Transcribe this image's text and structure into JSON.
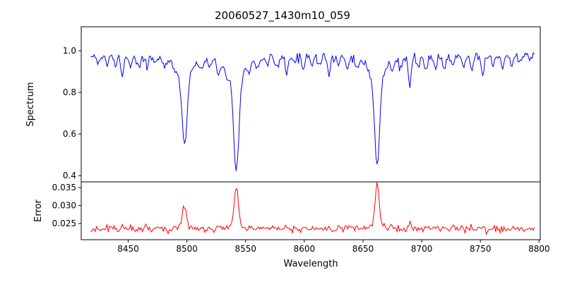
{
  "chart_data": {
    "type": "line",
    "title": "20060527_1430m10_059",
    "xlabel": "Wavelength",
    "xlim": [
      8410,
      8801
    ],
    "xticks": [
      8450,
      8500,
      8550,
      8600,
      8650,
      8700,
      8750,
      8800
    ],
    "wavelength_start": 8418,
    "wavelength_end": 8796,
    "wavelength_step": 1,
    "grid": false,
    "legend": "none",
    "panels": [
      {
        "name": "spectrum",
        "ylabel": "Spectrum",
        "yticks": [
          "0.4",
          "0.6",
          "0.8",
          "1.0"
        ],
        "ytick_values": [
          0.4,
          0.6,
          0.8,
          1.0
        ],
        "ylim": [
          0.37,
          1.115
        ],
        "color": "#0000ee",
        "continuum": 0.975,
        "noise_std": 0.011
      },
      {
        "name": "error",
        "ylabel": "Error",
        "yticks": [
          "0.025",
          "0.030",
          "0.035"
        ],
        "ytick_values": [
          0.025,
          0.03,
          0.035
        ],
        "ylim": [
          0.0205,
          0.0366
        ],
        "color": "#ff0000",
        "base": 0.0233,
        "noise_std": 0.00045
      }
    ],
    "absorption_lines": [
      {
        "center": 8498,
        "core_flux": 0.545,
        "error_peak": 0.0296
      },
      {
        "center": 8542,
        "core_flux": 0.42,
        "error_peak": 0.0352
      },
      {
        "center": 8662,
        "core_flux": 0.445,
        "error_peak": 0.0362
      }
    ],
    "minor_lines": [
      {
        "center": 8424,
        "depth": 0.04
      },
      {
        "center": 8432,
        "depth": 0.05
      },
      {
        "center": 8439,
        "depth": 0.04
      },
      {
        "center": 8445,
        "depth": 0.085
      },
      {
        "center": 8452,
        "depth": 0.05
      },
      {
        "center": 8459,
        "depth": 0.045
      },
      {
        "center": 8466,
        "depth": 0.055
      },
      {
        "center": 8473,
        "depth": 0.04
      },
      {
        "center": 8481,
        "depth": 0.05
      },
      {
        "center": 8489,
        "depth": 0.045
      },
      {
        "center": 8512,
        "depth": 0.055
      },
      {
        "center": 8519,
        "depth": 0.04
      },
      {
        "center": 8527,
        "depth": 0.06
      },
      {
        "center": 8534,
        "depth": 0.045
      },
      {
        "center": 8553,
        "depth": 0.04
      },
      {
        "center": 8560,
        "depth": 0.05
      },
      {
        "center": 8568,
        "depth": 0.04
      },
      {
        "center": 8577,
        "depth": 0.05
      },
      {
        "center": 8585,
        "depth": 0.07
      },
      {
        "center": 8592,
        "depth": 0.04
      },
      {
        "center": 8599,
        "depth": 0.05
      },
      {
        "center": 8606,
        "depth": 0.04
      },
      {
        "center": 8613,
        "depth": 0.045
      },
      {
        "center": 8621,
        "depth": 0.085
      },
      {
        "center": 8629,
        "depth": 0.04
      },
      {
        "center": 8637,
        "depth": 0.05
      },
      {
        "center": 8645,
        "depth": 0.055
      },
      {
        "center": 8675,
        "depth": 0.055
      },
      {
        "center": 8682,
        "depth": 0.045
      },
      {
        "center": 8690,
        "depth": 0.12
      },
      {
        "center": 8697,
        "depth": 0.04
      },
      {
        "center": 8704,
        "depth": 0.05
      },
      {
        "center": 8712,
        "depth": 0.045
      },
      {
        "center": 8719,
        "depth": 0.06
      },
      {
        "center": 8727,
        "depth": 0.04
      },
      {
        "center": 8735,
        "depth": 0.05
      },
      {
        "center": 8743,
        "depth": 0.06
      },
      {
        "center": 8752,
        "depth": 0.1
      },
      {
        "center": 8761,
        "depth": 0.045
      },
      {
        "center": 8769,
        "depth": 0.05
      },
      {
        "center": 8777,
        "depth": 0.055
      },
      {
        "center": 8784,
        "depth": 0.04
      }
    ],
    "seed": 20060527
  }
}
